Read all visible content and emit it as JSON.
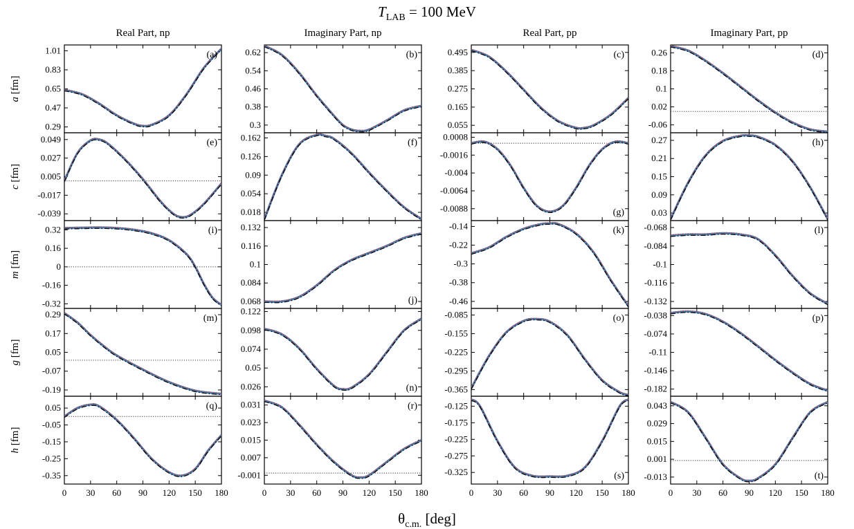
{
  "figure": {
    "title_main": "T",
    "title_sub": "LAB",
    "title_rest": " = 100 MeV",
    "xlabel_main": "θ",
    "xlabel_sub": "c.m.",
    "xlabel_rest": " [deg]",
    "column_titles": [
      "Real Part, np",
      "Imaginary Part, np",
      "Real Part, pp",
      "Imaginary Part, pp"
    ],
    "row_labels": [
      {
        "sym": "a",
        "unit": " [fm]"
      },
      {
        "sym": "c",
        "unit": " [fm]"
      },
      {
        "sym": "m",
        "unit": " [fm]"
      },
      {
        "sym": "g",
        "unit": " [fm]"
      },
      {
        "sym": "h",
        "unit": " [fm]"
      }
    ],
    "x_ticks": [
      "0",
      "30",
      "60",
      "90",
      "120",
      "150",
      "180"
    ],
    "colors": {
      "band": "#4a7fb5",
      "red_dotted": "#c0392b",
      "black": "#000000"
    }
  },
  "chart_data": {
    "type": "line",
    "xlim": [
      0,
      180
    ],
    "panels": [
      {
        "label": "(a)",
        "ticks": [
          "1.01",
          "0.83",
          "0.65",
          "0.47",
          "0.29"
        ],
        "ylim": [
          0.235,
          1.065
        ],
        "zero": null,
        "label_pos": "top-right",
        "x": [
          0,
          20,
          40,
          60,
          80,
          90,
          100,
          120,
          140,
          160,
          180
        ],
        "y": [
          0.64,
          0.6,
          0.51,
          0.4,
          0.32,
          0.3,
          0.31,
          0.4,
          0.6,
          0.85,
          1.03
        ]
      },
      {
        "label": "(b)",
        "ticks": [
          "0.62",
          "0.54",
          "0.46",
          "0.38",
          "0.3"
        ],
        "ylim": [
          0.266,
          0.654
        ],
        "zero": null,
        "label_pos": "top-right",
        "x": [
          0,
          20,
          40,
          60,
          80,
          90,
          100,
          110,
          120,
          140,
          160,
          180
        ],
        "y": [
          0.65,
          0.61,
          0.53,
          0.43,
          0.34,
          0.3,
          0.28,
          0.274,
          0.28,
          0.32,
          0.365,
          0.385
        ]
      },
      {
        "label": "(c)",
        "ticks": [
          "0.495",
          "0.385",
          "0.275",
          "0.165",
          "0.055"
        ],
        "ylim": [
          0.01,
          0.54
        ],
        "zero": null,
        "label_pos": "top-right",
        "x": [
          0,
          20,
          40,
          60,
          80,
          100,
          120,
          130,
          140,
          160,
          180
        ],
        "y": [
          0.51,
          0.47,
          0.38,
          0.27,
          0.16,
          0.08,
          0.04,
          0.04,
          0.055,
          0.12,
          0.22
        ]
      },
      {
        "label": "(d)",
        "ticks": [
          "0.26",
          "0.18",
          "0.1",
          "0.02",
          "-0.06"
        ],
        "ylim": [
          -0.095,
          0.295
        ],
        "zero": 0,
        "label_pos": "top-right",
        "x": [
          0,
          20,
          40,
          60,
          80,
          100,
          120,
          140,
          160,
          180
        ],
        "y": [
          0.29,
          0.27,
          0.225,
          0.17,
          0.11,
          0.05,
          -0.005,
          -0.05,
          -0.08,
          -0.09
        ]
      },
      {
        "label": "(e)",
        "ticks": [
          "0.049",
          "0.027",
          "0.005",
          "-0.017",
          "-0.039"
        ],
        "ylim": [
          -0.047,
          0.057
        ],
        "zero": 0,
        "label_pos": "top-right",
        "x": [
          0,
          15,
          30,
          40,
          50,
          70,
          90,
          110,
          125,
          135,
          145,
          160,
          180
        ],
        "y": [
          0.0,
          0.033,
          0.048,
          0.049,
          0.044,
          0.025,
          0.002,
          -0.024,
          -0.039,
          -0.043,
          -0.04,
          -0.027,
          -0.003
        ]
      },
      {
        "label": "(f)",
        "ticks": [
          "0.162",
          "0.126",
          "0.09",
          "0.054",
          "0.018"
        ],
        "ylim": [
          0.002,
          0.172
        ],
        "zero": null,
        "label_pos": "top-right",
        "x": [
          0,
          20,
          40,
          60,
          70,
          80,
          100,
          120,
          140,
          160,
          180
        ],
        "y": [
          0.005,
          0.09,
          0.15,
          0.168,
          0.166,
          0.16,
          0.132,
          0.095,
          0.06,
          0.028,
          0.005
        ]
      },
      {
        "label": "(g)",
        "ticks": [
          "0.0008",
          "-0.0016",
          "-0.004",
          "-0.0064",
          "-0.0088"
        ],
        "ylim": [
          -0.0104,
          0.0014
        ],
        "zero": 0,
        "label_pos": "bottom-right",
        "x": [
          0,
          15,
          30,
          45,
          60,
          75,
          90,
          105,
          120,
          135,
          150,
          165,
          180
        ],
        "y": [
          0.0,
          0.0002,
          -0.0008,
          -0.003,
          -0.006,
          -0.0084,
          -0.0092,
          -0.0084,
          -0.006,
          -0.003,
          -0.0008,
          0.0002,
          0.0
        ]
      },
      {
        "label": "(h)",
        "ticks": [
          "0.27",
          "0.21",
          "0.15",
          "0.09",
          "0.03"
        ],
        "ylim": [
          0.005,
          0.295
        ],
        "zero": null,
        "label_pos": "top-right",
        "x": [
          0,
          20,
          40,
          60,
          80,
          90,
          100,
          120,
          140,
          160,
          180
        ],
        "y": [
          0.01,
          0.13,
          0.22,
          0.268,
          0.285,
          0.286,
          0.282,
          0.255,
          0.2,
          0.115,
          0.01
        ]
      },
      {
        "label": "(i)",
        "ticks": [
          "0.32",
          "0.16",
          "0",
          "-0.16",
          "-0.32"
        ],
        "ylim": [
          -0.36,
          0.4
        ],
        "zero": 0,
        "label_pos": "top-right",
        "x": [
          0,
          20,
          40,
          60,
          80,
          100,
          120,
          140,
          150,
          160,
          170,
          180
        ],
        "y": [
          0.335,
          0.338,
          0.34,
          0.335,
          0.32,
          0.29,
          0.23,
          0.11,
          0.0,
          -0.15,
          -0.27,
          -0.33
        ]
      },
      {
        "label": "(j)",
        "ticks": [
          "0.132",
          "0.116",
          "0.1",
          "0.084",
          "0.068"
        ],
        "ylim": [
          0.062,
          0.138
        ],
        "zero": null,
        "label_pos": "bottom-right",
        "x": [
          0,
          20,
          40,
          60,
          80,
          100,
          120,
          140,
          160,
          180
        ],
        "y": [
          0.068,
          0.068,
          0.072,
          0.082,
          0.095,
          0.104,
          0.11,
          0.116,
          0.123,
          0.127
        ]
      },
      {
        "label": "(k)",
        "ticks": [
          "-0.14",
          "-0.22",
          "-0.3",
          "-0.38",
          "-0.46"
        ],
        "ylim": [
          -0.49,
          -0.115
        ],
        "zero": null,
        "label_pos": "top-right",
        "x": [
          0,
          20,
          40,
          60,
          80,
          90,
          100,
          120,
          140,
          160,
          180
        ],
        "y": [
          -0.255,
          -0.23,
          -0.185,
          -0.15,
          -0.13,
          -0.127,
          -0.13,
          -0.17,
          -0.25,
          -0.37,
          -0.48
        ]
      },
      {
        "label": "(l)",
        "ticks": [
          "-0.068",
          "-0.084",
          "-0.1",
          "-0.116",
          "-0.132"
        ],
        "ylim": [
          -0.138,
          -0.062
        ],
        "zero": null,
        "label_pos": "top-right",
        "x": [
          0,
          20,
          40,
          60,
          80,
          100,
          120,
          140,
          160,
          180
        ],
        "y": [
          -0.075,
          -0.074,
          -0.074,
          -0.073,
          -0.074,
          -0.078,
          -0.092,
          -0.11,
          -0.125,
          -0.134
        ]
      },
      {
        "label": "(m)",
        "ticks": [
          "0.29",
          "0.17",
          "0.05",
          "-0.07",
          "-0.19"
        ],
        "ylim": [
          -0.23,
          0.33
        ],
        "zero": 0,
        "label_pos": "top-right",
        "x": [
          0,
          15,
          30,
          45,
          60,
          90,
          120,
          150,
          180
        ],
        "y": [
          0.3,
          0.24,
          0.16,
          0.09,
          0.03,
          -0.06,
          -0.14,
          -0.195,
          -0.215
        ]
      },
      {
        "label": "(n)",
        "ticks": [
          "0.122",
          "0.098",
          "0.074",
          "0.05",
          "0.026"
        ],
        "ylim": [
          0.014,
          0.126
        ],
        "zero": null,
        "label_pos": "bottom-right",
        "x": [
          0,
          20,
          40,
          60,
          80,
          90,
          100,
          120,
          140,
          160,
          180
        ],
        "y": [
          0.1,
          0.093,
          0.075,
          0.049,
          0.027,
          0.023,
          0.025,
          0.042,
          0.07,
          0.098,
          0.113
        ]
      },
      {
        "label": "(o)",
        "ticks": [
          "-0.085",
          "-0.155",
          "-0.225",
          "-0.295",
          "-0.365"
        ],
        "ylim": [
          -0.39,
          -0.06
        ],
        "zero": null,
        "label_pos": "top-right",
        "x": [
          0,
          20,
          40,
          60,
          75,
          90,
          110,
          130,
          150,
          170,
          180
        ],
        "y": [
          -0.36,
          -0.24,
          -0.15,
          -0.107,
          -0.1,
          -0.11,
          -0.16,
          -0.25,
          -0.33,
          -0.375,
          -0.385
        ]
      },
      {
        "label": "(p)",
        "ticks": [
          "-0.038",
          "-0.074",
          "-0.11",
          "-0.146",
          "-0.182"
        ],
        "ylim": [
          -0.196,
          -0.024
        ],
        "zero": null,
        "label_pos": "top-right",
        "x": [
          0,
          20,
          40,
          60,
          80,
          100,
          120,
          140,
          160,
          180
        ],
        "y": [
          -0.033,
          -0.03,
          -0.035,
          -0.05,
          -0.072,
          -0.098,
          -0.125,
          -0.15,
          -0.172,
          -0.185
        ]
      },
      {
        "label": "(q)",
        "ticks": [
          "0.05",
          "-0.05",
          "-0.15",
          "-0.25",
          "-0.35"
        ],
        "ylim": [
          -0.4,
          0.12
        ],
        "zero": 0,
        "label_pos": "top-right",
        "x": [
          0,
          15,
          30,
          40,
          60,
          80,
          100,
          120,
          135,
          150,
          165,
          180
        ],
        "y": [
          0.0,
          0.05,
          0.07,
          0.06,
          -0.02,
          -0.13,
          -0.25,
          -0.33,
          -0.35,
          -0.31,
          -0.2,
          -0.11
        ]
      },
      {
        "label": "(r)",
        "ticks": [
          "0.031",
          "0.023",
          "0.015",
          "0.007",
          "-0.001"
        ],
        "ylim": [
          -0.005,
          0.035
        ],
        "zero": 0,
        "label_pos": "top-right",
        "x": [
          0,
          20,
          40,
          60,
          80,
          100,
          110,
          120,
          140,
          160,
          180
        ],
        "y": [
          0.033,
          0.03,
          0.022,
          0.013,
          0.005,
          -0.001,
          -0.002,
          -0.001,
          0.005,
          0.011,
          0.015
        ]
      },
      {
        "label": "(s)",
        "ticks": [
          "-0.125",
          "-0.175",
          "-0.225",
          "-0.275",
          "-0.325"
        ],
        "ylim": [
          -0.36,
          -0.095
        ],
        "zero": null,
        "label_pos": "bottom-right",
        "x": [
          0,
          10,
          30,
          50,
          70,
          90,
          110,
          130,
          150,
          170,
          180
        ],
        "y": [
          -0.105,
          -0.125,
          -0.23,
          -0.31,
          -0.335,
          -0.337,
          -0.335,
          -0.31,
          -0.23,
          -0.125,
          -0.105
        ]
      },
      {
        "label": "(t)",
        "ticks": [
          "0.043",
          "0.029",
          "0.015",
          "0.001",
          "-0.013"
        ],
        "ylim": [
          -0.0185,
          0.0505
        ],
        "zero": 0,
        "label_pos": "bottom-right",
        "x": [
          0,
          20,
          40,
          60,
          80,
          90,
          100,
          120,
          140,
          160,
          180
        ],
        "y": [
          0.046,
          0.038,
          0.018,
          -0.003,
          -0.014,
          -0.016,
          -0.014,
          -0.003,
          0.018,
          0.038,
          0.046
        ]
      }
    ]
  }
}
